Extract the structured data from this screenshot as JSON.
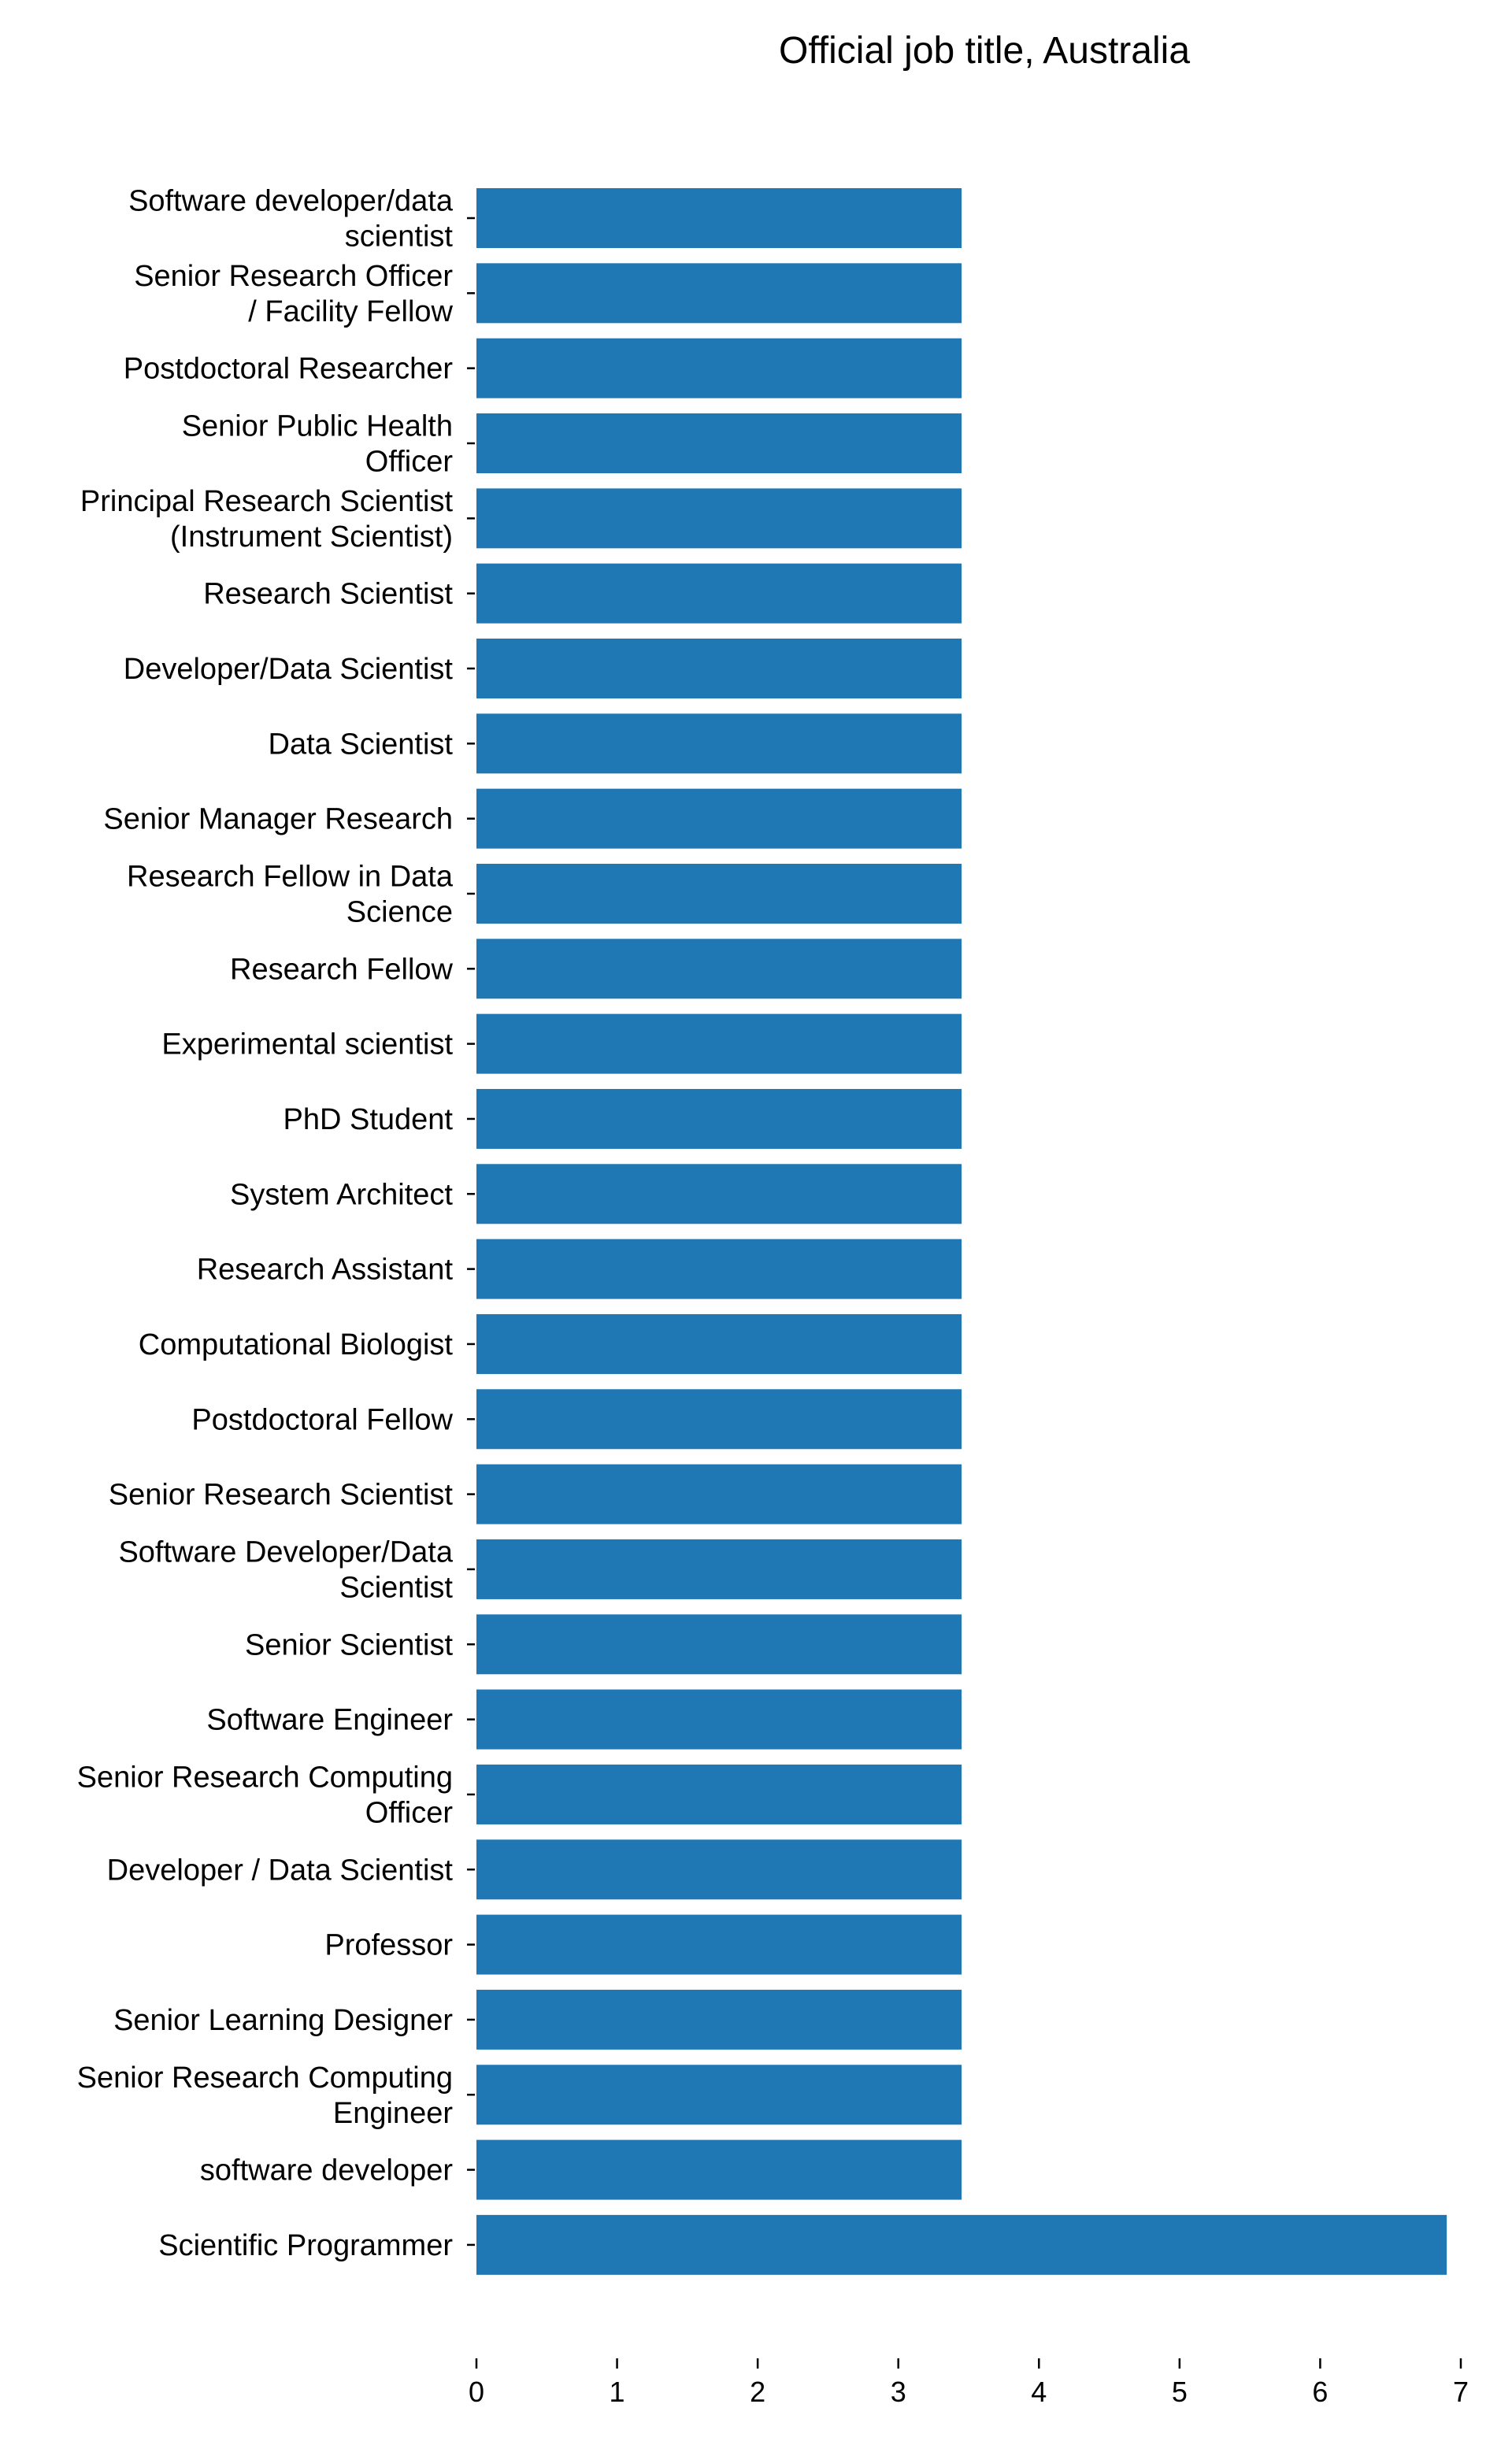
{
  "chart_data": {
    "type": "bar",
    "orientation": "horizontal",
    "title": "Official job title, Australia",
    "xlabel": "",
    "ylabel": "",
    "xlim": [
      0,
      7
    ],
    "x_ticks": [
      "0",
      "1",
      "2",
      "3",
      "4",
      "5",
      "6",
      "7"
    ],
    "grid": false,
    "legend": "none",
    "bar_color": "#1f77b4",
    "categories": [
      [
        "Software developer/data",
        "scientist"
      ],
      [
        "Senior Research Officer",
        "/ Facility Fellow"
      ],
      [
        "Postdoctoral Researcher"
      ],
      [
        "Senior Public Health",
        "Officer"
      ],
      [
        "Principal Research Scientist",
        "(Instrument Scientist)"
      ],
      [
        "Research Scientist"
      ],
      [
        "Developer/Data Scientist"
      ],
      [
        "Data Scientist"
      ],
      [
        "Senior Manager Research"
      ],
      [
        "Research Fellow in Data",
        "Science"
      ],
      [
        "Research Fellow"
      ],
      [
        "Experimental scientist"
      ],
      [
        "PhD Student "
      ],
      [
        "System Architect"
      ],
      [
        "Research Assistant"
      ],
      [
        "Computational Biologist"
      ],
      [
        "Postdoctoral Fellow"
      ],
      [
        "Senior Research Scientist"
      ],
      [
        "Software Developer/Data",
        "Scientist"
      ],
      [
        "Senior Scientist"
      ],
      [
        "Software Engineer"
      ],
      [
        "Senior Research Computing",
        "Officer"
      ],
      [
        "Developer / Data Scientist"
      ],
      [
        "Professor"
      ],
      [
        "Senior Learning Designer"
      ],
      [
        "Senior Research Computing",
        "Engineer"
      ],
      [
        "software developer"
      ],
      [
        "Scientific Programmer"
      ]
    ],
    "values": [
      3.45,
      3.45,
      3.45,
      3.45,
      3.45,
      3.45,
      3.45,
      3.45,
      3.45,
      3.45,
      3.45,
      3.45,
      3.45,
      3.45,
      3.45,
      3.45,
      3.45,
      3.45,
      3.45,
      3.45,
      3.45,
      3.45,
      3.45,
      3.45,
      3.45,
      3.45,
      3.45,
      6.9
    ]
  }
}
